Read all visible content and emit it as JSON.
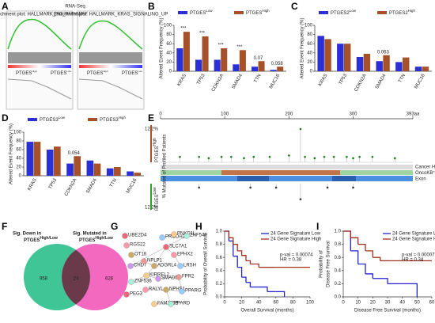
{
  "panel_labels": [
    "A",
    "B",
    "C",
    "D",
    "E",
    "F",
    "G",
    "H",
    "I"
  ],
  "gsea": {
    "heading": "RNA-Seq",
    "plots": [
      {
        "title": "Enrichment plot: HALLMARK_PI3_PATHWAY"
      },
      {
        "title": "Enrichment plot: HALLMARK_KRAS_SIGNALING_UP"
      }
    ],
    "low_label": "PTGES",
    "low_sup": "Low",
    "high_label": "PTGES",
    "high_sup": "High"
  },
  "chart_data": [
    {
      "type": "bar",
      "ylabel": "Altered Event Frequency (%)",
      "categories": [
        "KRAS",
        "TP53",
        "CDKN2A",
        "SMAD4",
        "TTN",
        "MUC16"
      ],
      "series": [
        {
          "name": "PTGES",
          "sup": "Low",
          "color": "#2b2fd6",
          "values": [
            50,
            25,
            25,
            15,
            10,
            3
          ]
        },
        {
          "name": "PTGES",
          "sup": "High",
          "color": "#a5522a",
          "values": [
            86,
            76,
            50,
            46,
            22,
            10
          ]
        }
      ],
      "annotations": [
        "***",
        "***",
        "***",
        "***",
        "0.07",
        "0.058"
      ],
      "ylim": [
        0,
        100
      ],
      "yticks": [
        0,
        20,
        40,
        60,
        80,
        100
      ]
    },
    {
      "type": "bar",
      "ylabel": "Altered Event Frequency (%)",
      "categories": [
        "KRAS",
        "TP53",
        "CDKN2A",
        "SMAD4",
        "TTN",
        "MUC16"
      ],
      "series": [
        {
          "name": "PTGES2",
          "sup": "Low",
          "color": "#2b2fd6",
          "values": [
            77,
            60,
            31,
            22,
            20,
            10
          ]
        },
        {
          "name": "PTGES2",
          "sup": "High",
          "color": "#a5522a",
          "values": [
            70,
            60,
            38,
            35,
            30,
            10
          ]
        }
      ],
      "annotations": [
        null,
        null,
        null,
        "0.063",
        null,
        null
      ],
      "ylim": [
        0,
        100
      ],
      "yticks": [
        0,
        20,
        40,
        60,
        80,
        100
      ]
    },
    {
      "type": "bar",
      "ylabel": "Altered Event Frequency (%)",
      "categories": [
        "KRAS",
        "TP53",
        "CDKN2A",
        "SMAD4",
        "TTN",
        "MUC16"
      ],
      "series": [
        {
          "name": "PTGES3",
          "sup": "Low",
          "color": "#2b2fd6",
          "values": [
            78,
            60,
            28,
            35,
            17,
            10
          ]
        },
        {
          "name": "PTGES3",
          "sup": "High",
          "color": "#a5522a",
          "values": [
            78,
            67,
            45,
            28,
            20,
            7
          ]
        }
      ],
      "annotations": [
        null,
        null,
        "0.054",
        null,
        null,
        null
      ],
      "ylim": [
        0,
        100
      ],
      "yticks": [
        0,
        20,
        40,
        60,
        80,
        100
      ]
    },
    {
      "type": "survival",
      "ylabel": [
        "Probability of Overall Survival"
      ],
      "xlabel": "Overall Survival (months)",
      "series": [
        {
          "name": "24 Gene Signature Low",
          "color": "#2323d0",
          "x": [
            0,
            5,
            10,
            15,
            20,
            25,
            30,
            40,
            50,
            60,
            70
          ],
          "values": [
            1,
            0.85,
            0.62,
            0.45,
            0.3,
            0.22,
            0.15,
            0.15,
            0.08,
            0.08,
            0
          ]
        },
        {
          "name": "24 Gene Signature High",
          "color": "#a0301e",
          "x": [
            0,
            5,
            10,
            15,
            20,
            25,
            30,
            40,
            50,
            60,
            80,
            100
          ],
          "values": [
            1,
            0.9,
            0.8,
            0.7,
            0.63,
            0.55,
            0.5,
            0.45,
            0.45,
            0.45,
            0.45,
            0.45
          ]
        }
      ],
      "annotations": [
        "p-val = 0.00074",
        "HR = 0.38"
      ],
      "xlim": [
        0,
        100
      ],
      "xticks": [
        0,
        20,
        40,
        60,
        80,
        100
      ],
      "ylim": [
        0,
        1
      ],
      "yticks": [
        {
          "value": 0,
          "label": "0.0"
        },
        0.2,
        0.4,
        0.6,
        0.8,
        {
          "value": 1,
          "label": "1.0"
        }
      ]
    },
    {
      "type": "survival",
      "ylabel": [
        "Probability of",
        "Disease Free Survival"
      ],
      "xlabel": "Disease Free Survival (months)",
      "series": [
        {
          "name": "24 Gene Signature Low",
          "color": "#2323d0",
          "x": [
            0,
            5,
            10,
            15,
            20,
            30,
            40,
            50
          ],
          "values": [
            1,
            0.7,
            0.5,
            0.35,
            0.28,
            0.2,
            0.2,
            0
          ]
        },
        {
          "name": "24 Gene Signature High",
          "color": "#a0301e",
          "x": [
            0,
            5,
            10,
            15,
            20,
            25,
            30,
            40,
            50,
            60
          ],
          "values": [
            1,
            0.9,
            0.8,
            0.7,
            0.6,
            0.55,
            0.55,
            0.55,
            0.55,
            0.55
          ]
        }
      ],
      "annotations": [
        "p-val = 0.00007",
        "HR = 0.34"
      ],
      "xlim": [
        0,
        60
      ],
      "xticks": [
        0,
        10,
        20,
        30,
        40,
        50,
        60
      ],
      "ylim": [
        0,
        1
      ],
      "yticks": [
        {
          "value": 0,
          "label": "0.0"
        },
        0.2,
        0.4,
        0.6,
        0.8,
        {
          "value": 1,
          "label": "1.0"
        }
      ]
    }
  ],
  "lollipop": {
    "xlim": [
      0,
      393
    ],
    "xticks": [
      0,
      100,
      200,
      300,
      {
        "value": 393,
        "label": "393aa"
      }
    ],
    "ymax": {
      "value": 12.2,
      "label": "12.2%"
    },
    "ylabel": "% Mutated of Profiled Patients",
    "high_label": "PTGES",
    "high_sup": "High",
    "low_label": "PTGES",
    "low_sup": "Low",
    "high": {
      "positions": [
        30,
        60,
        75,
        95,
        110,
        130,
        145,
        170,
        200,
        218,
        225,
        240,
        255,
        270,
        290,
        300,
        310,
        330,
        365
      ],
      "values": [
        2,
        2,
        1.5,
        2,
        2,
        1.5,
        2,
        2,
        2.5,
        12.2,
        2,
        1.5,
        2,
        2,
        2,
        1.5,
        2,
        2,
        1.5
      ]
    },
    "low": {
      "positions": [
        60,
        140,
        180,
        218,
        260,
        300
      ],
      "values": [
        2,
        2,
        2,
        8,
        2,
        2
      ]
    },
    "tracks": [
      "Cancer Hotspots",
      "OncoKB™",
      "Exon"
    ]
  },
  "venn": {
    "left_lines": [
      "Sig. Down in",
      "PTGES"
    ],
    "left_sup": "High/Low",
    "right_lines": [
      "Sig. Mutated in",
      "PTGES"
    ],
    "right_sup": "High/Low",
    "left": 958,
    "both": 24,
    "right": 628
  },
  "network": {
    "genes": [
      "UBE2D4",
      "RGS22",
      "OT18",
      "PRODH2",
      "PNKD1L",
      "ZNF540",
      "CHD7",
      "NPLP1",
      "SLC7A1",
      "EPHX2",
      "ADGRL4",
      "LRSH",
      "KIRREL2",
      "ZNF536",
      "SMAD5",
      "FPR2",
      "PEG3",
      "RALYL",
      "NPHS1",
      "PPARG",
      "FAM135B",
      "PPARD"
    ]
  }
}
